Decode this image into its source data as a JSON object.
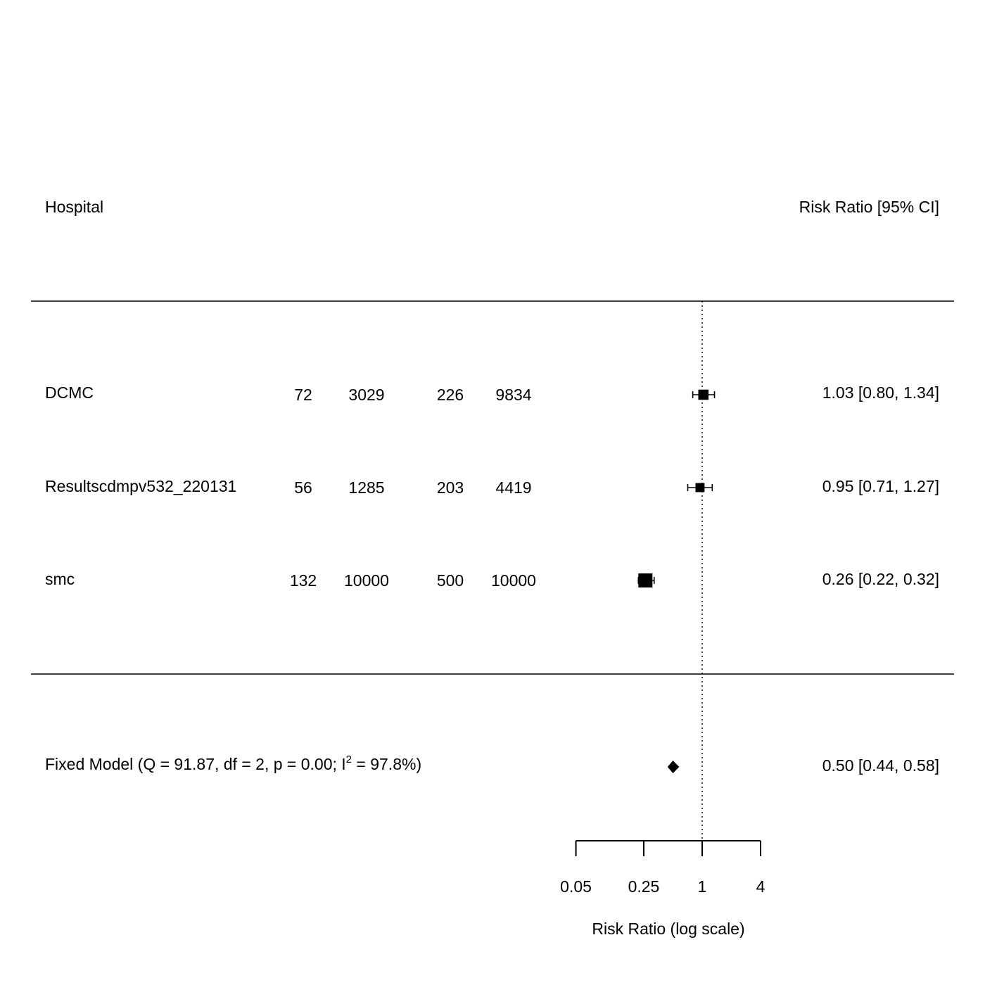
{
  "chart_data": {
    "type": "forest",
    "header": {
      "study_label": "Hospital",
      "effect_label": "Risk Ratio [95% CI]"
    },
    "studies": [
      {
        "name": "DCMC",
        "counts": [
          "72",
          "3029",
          "226",
          "9834"
        ],
        "rr": 1.03,
        "lower": 0.8,
        "upper": 1.34,
        "text": "1.03 [0.80, 1.34]"
      },
      {
        "name": "Resultscdmpv532_220131",
        "counts": [
          "56",
          "1285",
          "203",
          "4419"
        ],
        "rr": 0.95,
        "lower": 0.71,
        "upper": 1.27,
        "text": "0.95 [0.71, 1.27]"
      },
      {
        "name": "smc",
        "counts": [
          "132",
          "10000",
          "500",
          "10000"
        ],
        "rr": 0.26,
        "lower": 0.22,
        "upper": 0.32,
        "text": "0.26 [0.22, 0.32]"
      }
    ],
    "summary": {
      "label_prefix": "Fixed Model (Q = 91.87, df = 2, p = 0.00; I",
      "label_sup": "2",
      "label_suffix": " = 97.8%)",
      "rr": 0.5,
      "lower": 0.44,
      "upper": 0.58,
      "text": "0.50 [0.44, 0.58]"
    },
    "x_axis": {
      "scale": "log",
      "label": "Risk Ratio (log scale)",
      "ticks": [
        0.05,
        0.25,
        1,
        4
      ],
      "tick_labels": [
        "0.05",
        "0.25",
        "1",
        "4"
      ],
      "reference_line": 1
    }
  }
}
